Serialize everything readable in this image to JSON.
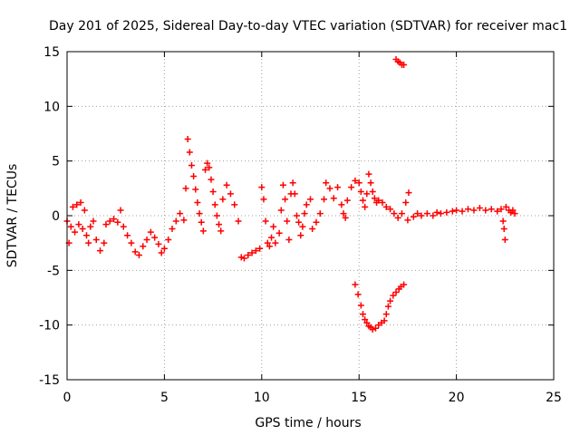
{
  "chart_data": {
    "type": "scatter",
    "title": "Day 201 of 2025, Sidereal Day-to-day VTEC variation (SDTVAR) for receiver mac1",
    "xlabel": "GPS time / hours",
    "ylabel": "SDTVAR / TECUs",
    "xlim": [
      0,
      25
    ],
    "ylim": [
      -15,
      15
    ],
    "xticks": [
      0,
      5,
      10,
      15,
      20,
      25
    ],
    "yticks": [
      -15,
      -10,
      -5,
      0,
      5,
      10,
      15
    ],
    "grid": true,
    "marker": "plus",
    "color": "#ff0000",
    "series": [
      {
        "name": "mac1",
        "points": [
          [
            0.0,
            -0.5
          ],
          [
            0.1,
            -2.5
          ],
          [
            0.2,
            -1.0
          ],
          [
            0.3,
            0.8
          ],
          [
            0.4,
            -1.5
          ],
          [
            0.5,
            1.0
          ],
          [
            0.6,
            -0.8
          ],
          [
            0.7,
            1.2
          ],
          [
            0.8,
            -1.2
          ],
          [
            0.9,
            0.5
          ],
          [
            1.0,
            -1.8
          ],
          [
            1.1,
            -2.5
          ],
          [
            1.2,
            -1.0
          ],
          [
            1.35,
            -0.5
          ],
          [
            1.5,
            -2.2
          ],
          [
            1.7,
            -3.2
          ],
          [
            1.9,
            -2.5
          ],
          [
            2.0,
            -0.8
          ],
          [
            2.2,
            -0.5
          ],
          [
            2.4,
            -0.3
          ],
          [
            2.6,
            -0.6
          ],
          [
            2.75,
            0.5
          ],
          [
            2.9,
            -1.0
          ],
          [
            3.1,
            -1.8
          ],
          [
            3.3,
            -2.5
          ],
          [
            3.5,
            -3.3
          ],
          [
            3.7,
            -3.6
          ],
          [
            3.9,
            -2.8
          ],
          [
            4.1,
            -2.2
          ],
          [
            4.3,
            -1.5
          ],
          [
            4.5,
            -2.0
          ],
          [
            4.7,
            -2.6
          ],
          [
            4.85,
            -3.4
          ],
          [
            5.0,
            -3.0
          ],
          [
            5.2,
            -2.2
          ],
          [
            5.4,
            -1.2
          ],
          [
            5.6,
            -0.5
          ],
          [
            5.8,
            0.2
          ],
          [
            6.0,
            -0.4
          ],
          [
            6.1,
            2.5
          ],
          [
            6.2,
            7.0
          ],
          [
            6.3,
            5.8
          ],
          [
            6.4,
            4.6
          ],
          [
            6.5,
            3.6
          ],
          [
            6.6,
            2.4
          ],
          [
            6.7,
            1.2
          ],
          [
            6.8,
            0.2
          ],
          [
            6.9,
            -0.6
          ],
          [
            7.0,
            -1.4
          ],
          [
            7.1,
            4.2
          ],
          [
            7.2,
            4.8
          ],
          [
            7.3,
            4.4
          ],
          [
            7.4,
            3.3
          ],
          [
            7.5,
            2.2
          ],
          [
            7.6,
            1.0
          ],
          [
            7.7,
            0.0
          ],
          [
            7.8,
            -0.8
          ],
          [
            7.9,
            -1.4
          ],
          [
            8.0,
            1.5
          ],
          [
            8.2,
            2.8
          ],
          [
            8.4,
            2.0
          ],
          [
            8.6,
            1.0
          ],
          [
            8.8,
            -0.5
          ],
          [
            8.95,
            -3.8
          ],
          [
            9.1,
            -3.9
          ],
          [
            9.3,
            -3.6
          ],
          [
            9.5,
            -3.4
          ],
          [
            9.7,
            -3.2
          ],
          [
            9.9,
            -3.0
          ],
          [
            10.0,
            2.6
          ],
          [
            10.1,
            1.5
          ],
          [
            10.2,
            -0.5
          ],
          [
            10.3,
            -2.5
          ],
          [
            10.4,
            -2.8
          ],
          [
            10.5,
            -2.0
          ],
          [
            10.6,
            -1.0
          ],
          [
            10.7,
            -2.5
          ],
          [
            10.9,
            -1.6
          ],
          [
            11.0,
            0.5
          ],
          [
            11.1,
            2.8
          ],
          [
            11.2,
            1.5
          ],
          [
            11.3,
            -0.5
          ],
          [
            11.4,
            -2.2
          ],
          [
            11.5,
            2.0
          ],
          [
            11.6,
            3.0
          ],
          [
            11.7,
            2.0
          ],
          [
            11.8,
            0.0
          ],
          [
            11.9,
            -0.6
          ],
          [
            12.0,
            -1.8
          ],
          [
            12.1,
            -1.0
          ],
          [
            12.2,
            0.2
          ],
          [
            12.3,
            1.0
          ],
          [
            12.5,
            1.5
          ],
          [
            12.6,
            -1.2
          ],
          [
            12.8,
            -0.6
          ],
          [
            13.0,
            0.2
          ],
          [
            13.2,
            1.5
          ],
          [
            13.3,
            3.0
          ],
          [
            13.5,
            2.5
          ],
          [
            13.7,
            1.6
          ],
          [
            13.9,
            2.6
          ],
          [
            14.1,
            1.0
          ],
          [
            14.2,
            0.2
          ],
          [
            14.3,
            -0.2
          ],
          [
            14.4,
            1.4
          ],
          [
            14.6,
            2.6
          ],
          [
            14.8,
            3.2
          ],
          [
            15.0,
            3.0
          ],
          [
            15.1,
            2.2
          ],
          [
            15.2,
            1.4
          ],
          [
            15.3,
            0.8
          ],
          [
            15.4,
            2.0
          ],
          [
            15.5,
            3.8
          ],
          [
            15.6,
            3.0
          ],
          [
            15.7,
            2.2
          ],
          [
            15.8,
            1.6
          ],
          [
            15.9,
            1.2
          ],
          [
            16.0,
            1.4
          ],
          [
            16.2,
            1.2
          ],
          [
            16.4,
            0.8
          ],
          [
            16.6,
            0.6
          ],
          [
            16.8,
            0.2
          ],
          [
            17.0,
            -0.2
          ],
          [
            17.2,
            0.2
          ],
          [
            17.4,
            1.2
          ],
          [
            17.55,
            2.1
          ],
          [
            14.8,
            -6.3
          ],
          [
            14.95,
            -7.2
          ],
          [
            15.1,
            -8.2
          ],
          [
            15.2,
            -9.0
          ],
          [
            15.3,
            -9.5
          ],
          [
            15.4,
            -9.8
          ],
          [
            15.5,
            -10.1
          ],
          [
            15.6,
            -10.2
          ],
          [
            15.7,
            -10.4
          ],
          [
            15.85,
            -10.3
          ],
          [
            16.0,
            -10.0
          ],
          [
            16.15,
            -9.8
          ],
          [
            16.3,
            -9.6
          ],
          [
            16.4,
            -9.0
          ],
          [
            16.5,
            -8.3
          ],
          [
            16.6,
            -7.8
          ],
          [
            16.75,
            -7.3
          ],
          [
            16.9,
            -7.0
          ],
          [
            17.05,
            -6.7
          ],
          [
            17.15,
            -6.5
          ],
          [
            17.3,
            -6.3
          ],
          [
            16.9,
            14.3
          ],
          [
            17.0,
            14.1
          ],
          [
            17.1,
            14.0
          ],
          [
            17.2,
            13.8
          ],
          [
            17.3,
            13.8
          ],
          [
            17.5,
            -0.4
          ],
          [
            17.8,
            -0.1
          ],
          [
            18.0,
            0.2
          ],
          [
            18.2,
            0.0
          ],
          [
            18.5,
            0.2
          ],
          [
            18.8,
            0.0
          ],
          [
            19.0,
            0.3
          ],
          [
            19.2,
            0.2
          ],
          [
            19.5,
            0.3
          ],
          [
            19.8,
            0.4
          ],
          [
            20.0,
            0.5
          ],
          [
            20.3,
            0.4
          ],
          [
            20.6,
            0.6
          ],
          [
            20.9,
            0.5
          ],
          [
            21.2,
            0.7
          ],
          [
            21.5,
            0.5
          ],
          [
            21.8,
            0.6
          ],
          [
            22.1,
            0.4
          ],
          [
            22.3,
            0.6
          ],
          [
            22.4,
            -0.5
          ],
          [
            22.45,
            -1.2
          ],
          [
            22.5,
            -2.2
          ],
          [
            22.55,
            0.8
          ],
          [
            22.7,
            0.5
          ],
          [
            22.8,
            0.3
          ],
          [
            22.9,
            0.5
          ],
          [
            23.0,
            0.2
          ]
        ]
      }
    ]
  }
}
